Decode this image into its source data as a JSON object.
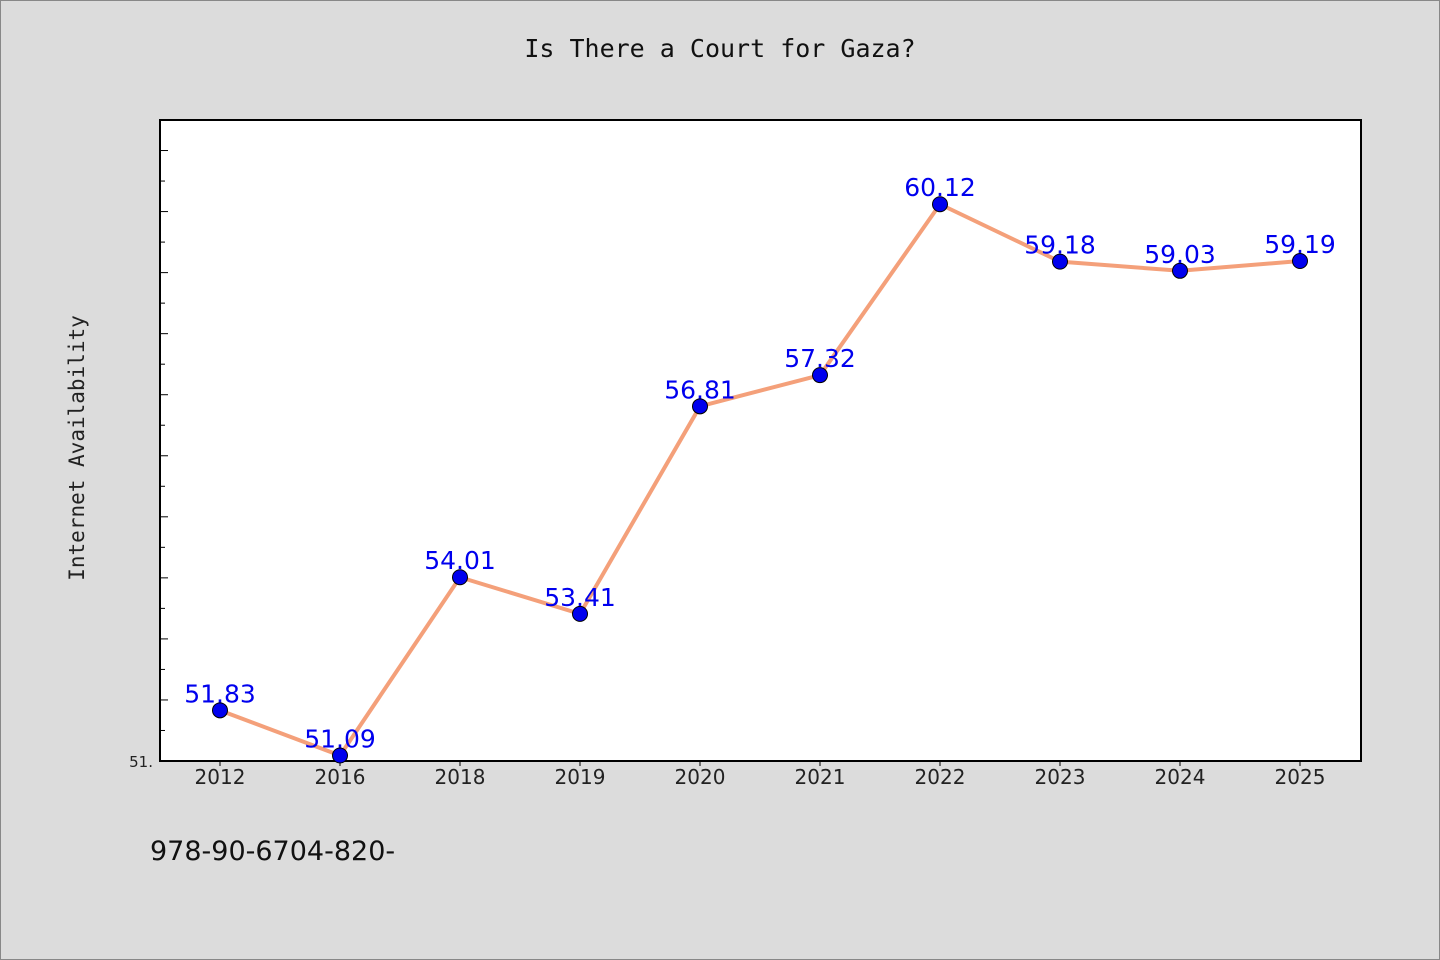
{
  "chart_data": {
    "type": "line",
    "title": "Is There a Court for Gaza?",
    "xlabel": "",
    "ylabel": "Internet Availability",
    "categories": [
      "2012",
      "2016",
      "2018",
      "2019",
      "2020",
      "2021",
      "2022",
      "2023",
      "2024",
      "2025"
    ],
    "values": [
      51.83,
      51.09,
      54.01,
      53.41,
      56.81,
      57.32,
      60.12,
      59.18,
      59.03,
      59.19
    ],
    "data_labels": [
      "51.83",
      "51.09",
      "54.01",
      "53.41",
      "56.81",
      "57.32",
      "60.12",
      "59.18",
      "59.03",
      "59.19"
    ],
    "ytick_label": "51.",
    "ylim": [
      51.0,
      61.5
    ],
    "grid": false,
    "line_color": "#f4a07a",
    "marker_color": "#0000ee",
    "label_color": "#0000ee"
  },
  "footer": {
    "text": "978-90-6704-820-"
  }
}
